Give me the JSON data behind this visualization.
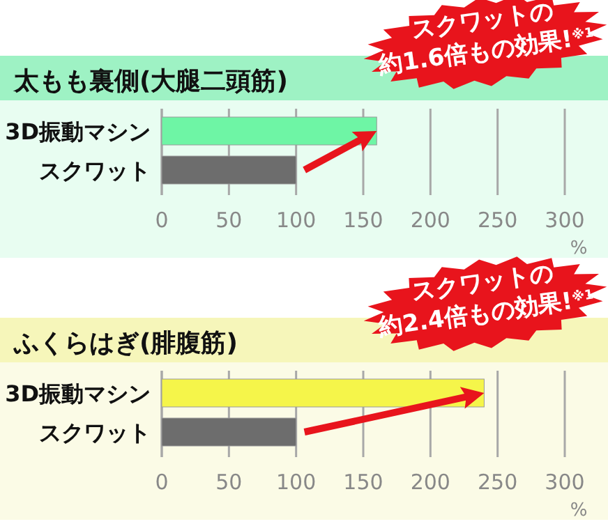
{
  "chart_data": [
    {
      "type": "bar",
      "orientation": "horizontal",
      "title": "太もも裏側(大腿二頭筋)",
      "categories": [
        "3D振動マシン",
        "スクワット"
      ],
      "values": [
        160,
        100
      ],
      "colors": [
        "#6ef5a5",
        "#6d6d6d"
      ],
      "xlim": [
        0,
        300
      ],
      "xticks": [
        0,
        50,
        100,
        150,
        200,
        250,
        300
      ],
      "xlabel": "%",
      "grid": "x",
      "annotations": [
        {
          "text": "スクワットの\n約1.6倍もの効果!$^{※1}$",
          "x": 160,
          "y": "3D振動マシン"
        }
      ]
    },
    {
      "type": "bar",
      "orientation": "horizontal",
      "title": "ふくらはぎ(腓腹筋)",
      "categories": [
        "3D振動マシン",
        "スクワット"
      ],
      "values": [
        240,
        100
      ],
      "colors": [
        "#f5f54a",
        "#6d6d6d"
      ],
      "xlim": [
        0,
        300
      ],
      "xticks": [
        0,
        50,
        100,
        150,
        200,
        250,
        300
      ],
      "xlabel": "%",
      "grid": "x",
      "annotations": [
        {
          "text": "スクワットの\n約2.4倍もの効果!$^{※1}$",
          "x": 240,
          "y": "3D振動マシン"
        }
      ]
    }
  ]
}
